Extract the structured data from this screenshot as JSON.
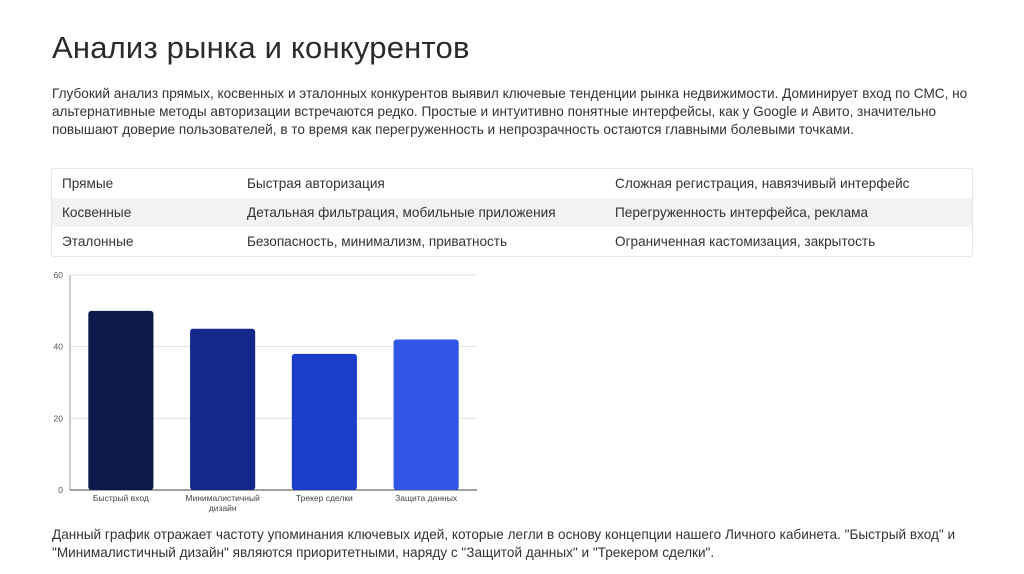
{
  "slide": {
    "title": "Анализ рынка и конкурентов",
    "intro": "Глубокий анализ прямых, косвенных и эталонных конкурентов выявил ключевые тенденции рынка недвижимости. Доминирует вход по СМС, но альтернативные методы авторизации встречаются редко. Простые и интуитивно понятные интерфейсы, как у Google и Авито, значительно повышают доверие пользователей, в то время как перегруженность и непрозрачность остаются главными болевыми точками.",
    "footer": "Данный график отражает частоту упоминания ключевых идей, которые легли в основу концепции нашего Личного кабинета. \"Быстрый вход\" и \"Минималистичный дизайн\" являются приоритетными, наряду с \"Защитой данных\" и \"Трекером сделки\"."
  },
  "table": {
    "rows": [
      {
        "type": "Прямые",
        "strength": "Быстрая авторизация",
        "weakness": "Сложная регистрация, навязчивый интерфейс"
      },
      {
        "type": "Косвенные",
        "strength": "Детальная фильтрация, мобильные приложения",
        "weakness": "Перегруженность интерфейса, реклама"
      },
      {
        "type": "Эталонные",
        "strength": "Безопасность, минимализм, приватность",
        "weakness": "Ограниченная кастомизация, закрытость"
      }
    ]
  },
  "chart_data": {
    "type": "bar",
    "categories": [
      "Быстрый вход",
      "Минималистичный дизайн",
      "Трекер сделки",
      "Защита данных"
    ],
    "category_lines": [
      [
        "Быстрый вход"
      ],
      [
        "Минималистичный",
        "дизайн"
      ],
      [
        "Трекер сделки"
      ],
      [
        "Защита данных"
      ]
    ],
    "values": [
      50,
      45,
      38,
      42
    ],
    "bar_colors": [
      "#0b1a4a",
      "#13288a",
      "#1c3ccc",
      "#3156e6"
    ],
    "title": "",
    "xlabel": "",
    "ylabel": "",
    "ylim": [
      0,
      60
    ],
    "yticks": [
      0,
      20,
      40,
      60
    ],
    "grid": true,
    "legend": "none"
  }
}
